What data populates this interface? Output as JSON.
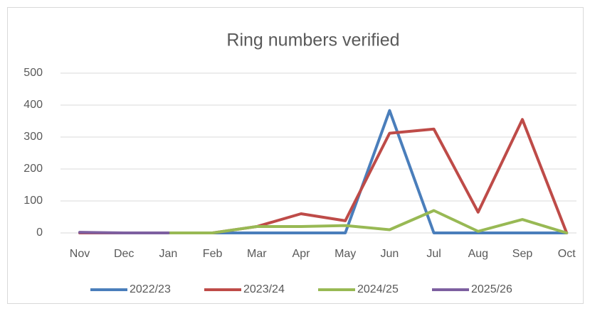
{
  "chart_data": {
    "type": "line",
    "title": "Ring numbers verified",
    "categories": [
      "Nov",
      "Dec",
      "Jan",
      "Feb",
      "Mar",
      "Apr",
      "May",
      "Jun",
      "Jul",
      "Aug",
      "Sep",
      "Oct"
    ],
    "series": [
      {
        "name": "2022/23",
        "color": "#4a7ebb",
        "values": [
          0,
          0,
          0,
          0,
          0,
          0,
          0,
          383,
          0,
          0,
          0,
          0
        ]
      },
      {
        "name": "2023/24",
        "color": "#be4b48",
        "values": [
          0,
          0,
          0,
          0,
          20,
          60,
          38,
          312,
          325,
          65,
          355,
          0
        ]
      },
      {
        "name": "2024/25",
        "color": "#98b954",
        "values": [
          null,
          null,
          0,
          0,
          20,
          20,
          23,
          10,
          70,
          5,
          42,
          0
        ]
      },
      {
        "name": "2025/26",
        "color": "#7d5fa0",
        "values": [
          2,
          0,
          0,
          null,
          null,
          null,
          null,
          null,
          null,
          null,
          null,
          null
        ]
      }
    ],
    "ylim": [
      0,
      500
    ],
    "yticks": [
      0,
      100,
      200,
      300,
      400,
      500
    ],
    "grid": true,
    "legend": "bottom"
  }
}
